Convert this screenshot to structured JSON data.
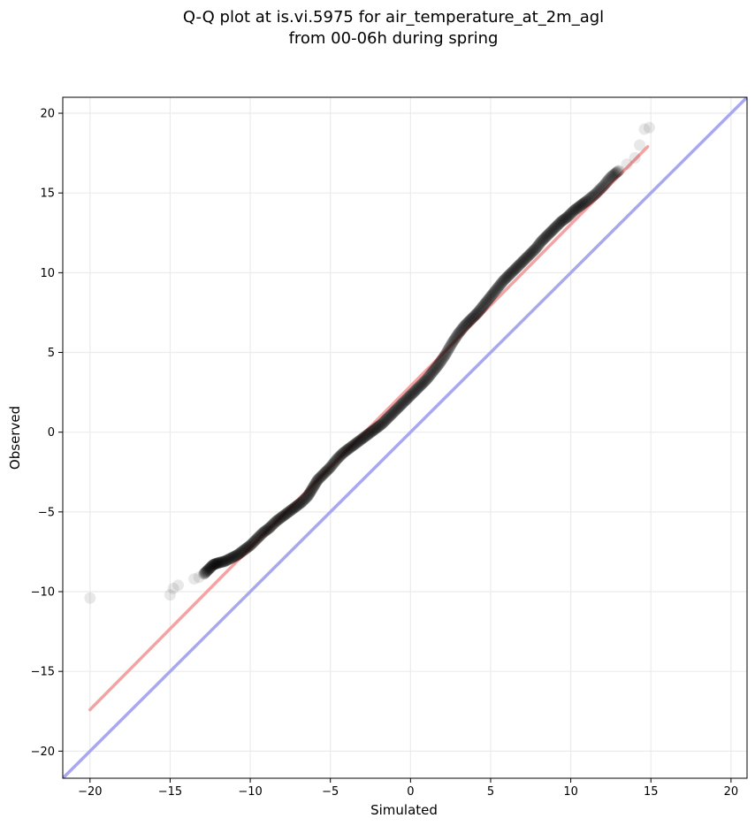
{
  "chart_data": {
    "type": "scatter",
    "title_lines": [
      "Q-Q plot at is.vi.5975 for air_temperature_at_2m_agl",
      "from 00-06h during spring"
    ],
    "xlabel": "Simulated",
    "ylabel": "Observed",
    "xlim": [
      -21.7,
      21.0
    ],
    "ylim": [
      -21.7,
      21.0
    ],
    "xticks": [
      -20,
      -15,
      -10,
      -5,
      0,
      5,
      10,
      15,
      20
    ],
    "yticks": [
      -20,
      -15,
      -10,
      -5,
      0,
      5,
      10,
      15,
      20
    ],
    "xtick_labels": [
      "−20",
      "−15",
      "−10",
      "−5",
      "0",
      "5",
      "10",
      "15",
      "20"
    ],
    "ytick_labels": [
      "−20",
      "−15",
      "−10",
      "−5",
      "0",
      "5",
      "10",
      "15",
      "20"
    ],
    "grid": true,
    "reference_line": {
      "name": "1:1",
      "color": "#a8a8f0",
      "x": [
        -21.7,
        21.0
      ],
      "y": [
        -21.7,
        21.0
      ]
    },
    "fit_line": {
      "color": "#f4a3a3",
      "x": [
        -20.0,
        14.8
      ],
      "y": [
        -17.4,
        17.9
      ]
    },
    "point_color": "#000000",
    "points": [
      {
        "x": -20.0,
        "y": -10.4
      },
      {
        "x": -15.0,
        "y": -10.2
      },
      {
        "x": -14.8,
        "y": -9.8
      },
      {
        "x": -14.5,
        "y": -9.6
      },
      {
        "x": -13.5,
        "y": -9.2
      },
      {
        "x": -13.2,
        "y": -9.1
      },
      {
        "x": -12.9,
        "y": -8.9
      },
      {
        "x": -12.6,
        "y": -8.6
      },
      {
        "x": -12.3,
        "y": -8.3
      },
      {
        "x": -12.0,
        "y": -8.2
      },
      {
        "x": -11.6,
        "y": -8.1
      },
      {
        "x": -11.2,
        "y": -7.9
      },
      {
        "x": -10.8,
        "y": -7.7
      },
      {
        "x": -10.4,
        "y": -7.4
      },
      {
        "x": -10.0,
        "y": -7.1
      },
      {
        "x": -9.6,
        "y": -6.7
      },
      {
        "x": -9.2,
        "y": -6.3
      },
      {
        "x": -8.8,
        "y": -6.0
      },
      {
        "x": -8.4,
        "y": -5.6
      },
      {
        "x": -8.0,
        "y": -5.3
      },
      {
        "x": -7.6,
        "y": -5.0
      },
      {
        "x": -7.2,
        "y": -4.7
      },
      {
        "x": -6.8,
        "y": -4.4
      },
      {
        "x": -6.4,
        "y": -4.0
      },
      {
        "x": -6.1,
        "y": -3.5
      },
      {
        "x": -5.8,
        "y": -3.0
      },
      {
        "x": -5.4,
        "y": -2.6
      },
      {
        "x": -5.0,
        "y": -2.2
      },
      {
        "x": -4.6,
        "y": -1.7
      },
      {
        "x": -4.2,
        "y": -1.3
      },
      {
        "x": -3.8,
        "y": -1.0
      },
      {
        "x": -3.4,
        "y": -0.7
      },
      {
        "x": -3.0,
        "y": -0.4
      },
      {
        "x": -2.6,
        "y": -0.1
      },
      {
        "x": -2.2,
        "y": 0.2
      },
      {
        "x": -1.8,
        "y": 0.5
      },
      {
        "x": -1.4,
        "y": 0.9
      },
      {
        "x": -1.0,
        "y": 1.3
      },
      {
        "x": -0.6,
        "y": 1.7
      },
      {
        "x": -0.2,
        "y": 2.1
      },
      {
        "x": 0.2,
        "y": 2.5
      },
      {
        "x": 0.6,
        "y": 2.9
      },
      {
        "x": 1.0,
        "y": 3.3
      },
      {
        "x": 1.4,
        "y": 3.8
      },
      {
        "x": 1.8,
        "y": 4.3
      },
      {
        "x": 2.2,
        "y": 4.9
      },
      {
        "x": 2.6,
        "y": 5.6
      },
      {
        "x": 3.0,
        "y": 6.2
      },
      {
        "x": 3.4,
        "y": 6.7
      },
      {
        "x": 3.8,
        "y": 7.1
      },
      {
        "x": 4.2,
        "y": 7.5
      },
      {
        "x": 4.6,
        "y": 8.0
      },
      {
        "x": 5.0,
        "y": 8.5
      },
      {
        "x": 5.4,
        "y": 9.0
      },
      {
        "x": 5.8,
        "y": 9.5
      },
      {
        "x": 6.2,
        "y": 9.9
      },
      {
        "x": 6.6,
        "y": 10.3
      },
      {
        "x": 7.0,
        "y": 10.7
      },
      {
        "x": 7.4,
        "y": 11.1
      },
      {
        "x": 7.8,
        "y": 11.5
      },
      {
        "x": 8.2,
        "y": 12.0
      },
      {
        "x": 8.6,
        "y": 12.4
      },
      {
        "x": 9.0,
        "y": 12.8
      },
      {
        "x": 9.4,
        "y": 13.2
      },
      {
        "x": 9.8,
        "y": 13.5
      },
      {
        "x": 10.2,
        "y": 13.9
      },
      {
        "x": 10.6,
        "y": 14.2
      },
      {
        "x": 11.0,
        "y": 14.5
      },
      {
        "x": 11.5,
        "y": 14.9
      },
      {
        "x": 12.0,
        "y": 15.4
      },
      {
        "x": 12.5,
        "y": 16.0
      },
      {
        "x": 13.0,
        "y": 16.4
      },
      {
        "x": 13.5,
        "y": 16.8
      },
      {
        "x": 14.0,
        "y": 17.2
      },
      {
        "x": 14.3,
        "y": 18.0
      },
      {
        "x": 14.6,
        "y": 19.0
      },
      {
        "x": 14.9,
        "y": 19.1
      }
    ]
  }
}
